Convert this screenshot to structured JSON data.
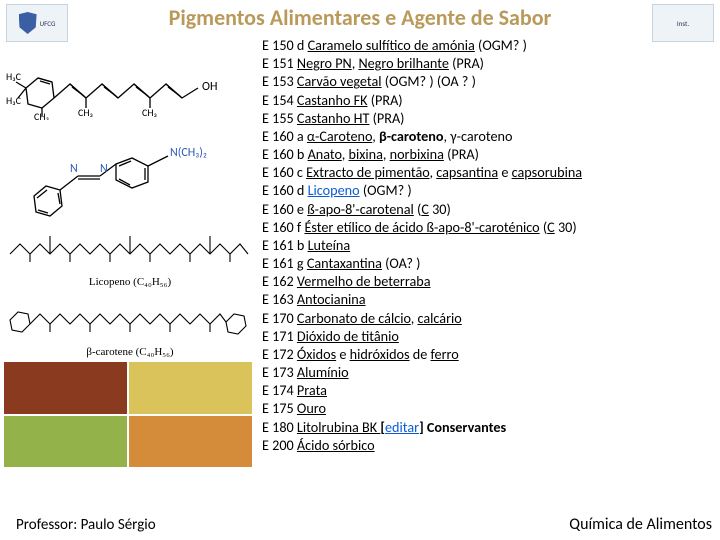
{
  "title": "Pigmentos Alimentares e Agente de Sabor",
  "logos": {
    "left_alt": "UFCG",
    "right_alt": "Inst."
  },
  "professor": "Professor: Paulo Sérgio",
  "footer_right": "Química de Alimentos",
  "captions": {
    "licopeno": "Licopeno (C₄₀H₅₆)",
    "betacarotene": "β-carotene (C₄₀H₅₆)"
  },
  "food_colors": [
    "#8a3b1f",
    "#d9c35a",
    "#93b24a",
    "#d48b3a"
  ],
  "rows": [
    {
      "code": "E 150 d",
      "parts": [
        {
          "t": "Caramelo sulfítico de amónia",
          "s": "u"
        },
        {
          "t": " (OGM? )"
        }
      ]
    },
    {
      "code": "E 151",
      "parts": [
        {
          "t": "Negro PN",
          "s": "u"
        },
        {
          "t": ", "
        },
        {
          "t": "Negro brilhante",
          "s": "u"
        },
        {
          "t": " (PRA)"
        }
      ]
    },
    {
      "code": "E 153",
      "parts": [
        {
          "t": "Carvão vegetal",
          "s": "u"
        },
        {
          "t": " (OGM? ) (OA ? )"
        }
      ]
    },
    {
      "code": "E 154",
      "parts": [
        {
          "t": "Castanho FK",
          "s": "u"
        },
        {
          "t": " (PRA)"
        }
      ]
    },
    {
      "code": "E 155",
      "parts": [
        {
          "t": "Castanho HT",
          "s": "u"
        },
        {
          "t": " (PRA)"
        }
      ]
    },
    {
      "code": "E 160 a",
      "parts": [
        {
          "t": "α-Caroteno",
          "s": "u"
        },
        {
          "t": ", "
        },
        {
          "t": "β-caroteno",
          "s": "b"
        },
        {
          "t": ", "
        },
        {
          "t": "γ-caroteno"
        }
      ]
    },
    {
      "code": "E 160 b",
      "parts": [
        {
          "t": "Anato",
          "s": "u"
        },
        {
          "t": ", "
        },
        {
          "t": "bixina",
          "s": "u"
        },
        {
          "t": ", "
        },
        {
          "t": "norbixina",
          "s": "u"
        },
        {
          "t": " (PRA)"
        }
      ]
    },
    {
      "code": "E 160 c",
      "parts": [
        {
          "t": "Extracto de pimentão",
          "s": "u"
        },
        {
          "t": ", "
        },
        {
          "t": "capsantina",
          "s": "u"
        },
        {
          "t": " e "
        },
        {
          "t": "capsorubina",
          "s": "u"
        }
      ]
    },
    {
      "code": "E 160 d",
      "parts": [
        {
          "t": "Licopeno",
          "s": "link"
        },
        {
          "t": " (OGM? )"
        }
      ]
    },
    {
      "code": "E 160 e",
      "parts": [
        {
          "t": "ß-apo-8'-carotenal",
          "s": "u"
        },
        {
          "t": " ("
        },
        {
          "t": "C",
          "s": "u"
        },
        {
          "t": " 30)"
        }
      ]
    },
    {
      "code": "E 160 f",
      "parts": [
        {
          "t": "Éster etílico de ácido ß-apo-8'-caroténico",
          "s": "u"
        },
        {
          "t": " ("
        },
        {
          "t": "C",
          "s": "u"
        },
        {
          "t": " 30)"
        }
      ]
    },
    {
      "code": "E 161 b",
      "parts": [
        {
          "t": "Luteína",
          "s": "u"
        }
      ]
    },
    {
      "code": "E 161 g",
      "parts": [
        {
          "t": "Cantaxantina",
          "s": "u"
        },
        {
          "t": " (OA? )"
        }
      ]
    },
    {
      "code": "E 162",
      "parts": [
        {
          "t": "Vermelho de beterraba",
          "s": "u"
        }
      ]
    },
    {
      "code": "E 163",
      "parts": [
        {
          "t": "Antocianina",
          "s": "u"
        }
      ]
    },
    {
      "code": "E 170",
      "parts": [
        {
          "t": "Carbonato de cálcio",
          "s": "u"
        },
        {
          "t": ", "
        },
        {
          "t": "calcário",
          "s": "u"
        }
      ]
    },
    {
      "code": "E 171",
      "parts": [
        {
          "t": "Dióxido de titânio",
          "s": "u"
        }
      ]
    },
    {
      "code": "E 172",
      "parts": [
        {
          "t": "Óxidos",
          "s": "u"
        },
        {
          "t": " e "
        },
        {
          "t": "hidróxidos",
          "s": "u"
        },
        {
          "t": " de "
        },
        {
          "t": "ferro",
          "s": "u"
        }
      ]
    },
    {
      "code": "E 173",
      "parts": [
        {
          "t": "Alumínio",
          "s": "u"
        }
      ]
    },
    {
      "code": "E 174",
      "parts": [
        {
          "t": "Prata",
          "s": "u"
        }
      ]
    },
    {
      "code": "E 175",
      "parts": [
        {
          "t": "Ouro",
          "s": "u"
        }
      ]
    },
    {
      "code": "E 180",
      "parts": [
        {
          "t": "Litolrubina BK ",
          "s": "u"
        },
        {
          "t": "[",
          "s": "b"
        },
        {
          "t": "editar",
          "s": "editar u"
        },
        {
          "t": "]",
          "s": "b"
        },
        {
          "t": " Conservantes",
          "s": "b"
        }
      ]
    },
    {
      "code": "E 200",
      "parts": [
        {
          "t": "Ácido sórbico",
          "s": "u"
        }
      ]
    }
  ],
  "chem_svg": {
    "stroke": "#000000",
    "azo_n_color": "#2e5cb8",
    "oh_color": "#000"
  }
}
